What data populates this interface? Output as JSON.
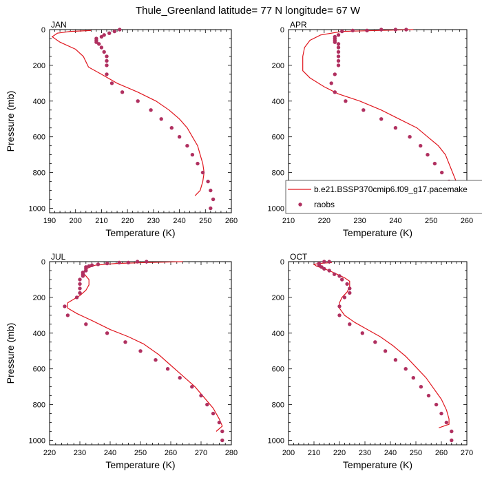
{
  "title": "Thule_Greenland  latitude= 77 N longitude= 67 W",
  "legend": {
    "model_name": "b.e21.BSSP370cmip6.f09_g17.pacemake",
    "obs_name": "raobs",
    "placement": "lower-right of APR panel"
  },
  "colors": {
    "model": "#e0161e",
    "obs": "#b03060",
    "axis": "#000000"
  },
  "chart_data": [
    {
      "panel": "JAN",
      "type": "line",
      "xlabel": "Temperature (K)",
      "ylabel": "Pressure (mb)",
      "xlim": [
        190,
        260
      ],
      "ylim": [
        1025,
        0
      ],
      "y_inverted": true,
      "xticks": [
        190,
        200,
        210,
        220,
        230,
        240,
        250,
        260
      ],
      "yticks": [
        0,
        200,
        400,
        600,
        800,
        1000
      ],
      "series": [
        {
          "name": "b.e21.BSSP370cmip6.f09_g17.pacemake",
          "style": "line",
          "points": [
            [
              206,
              5
            ],
            [
              198,
              10
            ],
            [
              193,
              20
            ],
            [
              191,
              40
            ],
            [
              194,
              70
            ],
            [
              200,
              110
            ],
            [
              203,
              150
            ],
            [
              204,
              180
            ],
            [
              205,
              210
            ],
            [
              210,
              250
            ],
            [
              216,
              300
            ],
            [
              224,
              350
            ],
            [
              231,
              400
            ],
            [
              236,
              450
            ],
            [
              240,
              500
            ],
            [
              243,
              550
            ],
            [
              245,
              600
            ],
            [
              247,
              650
            ],
            [
              248,
              700
            ],
            [
              249,
              750
            ],
            [
              249.5,
              800
            ],
            [
              249,
              850
            ],
            [
              248,
              900
            ],
            [
              246,
              930
            ]
          ]
        },
        {
          "name": "raobs",
          "style": "marker",
          "points": [
            [
              217,
              0
            ],
            [
              215,
              10
            ],
            [
              213,
              20
            ],
            [
              211,
              30
            ],
            [
              210,
              40
            ],
            [
              208,
              50
            ],
            [
              208,
              60
            ],
            [
              208,
              70
            ],
            [
              209,
              80
            ],
            [
              210,
              100
            ],
            [
              211,
              125
            ],
            [
              212,
              150
            ],
            [
              212,
              175
            ],
            [
              212,
              200
            ],
            [
              212,
              250
            ],
            [
              214,
              300
            ],
            [
              218,
              350
            ],
            [
              224,
              400
            ],
            [
              229,
              450
            ],
            [
              233,
              500
            ],
            [
              237,
              550
            ],
            [
              240,
              600
            ],
            [
              243,
              650
            ],
            [
              245,
              700
            ],
            [
              247,
              750
            ],
            [
              249,
              800
            ],
            [
              251,
              850
            ],
            [
              252,
              900
            ],
            [
              253,
              950
            ],
            [
              252,
              1000
            ]
          ]
        }
      ]
    },
    {
      "panel": "APR",
      "type": "line",
      "xlabel": "Temperature (K)",
      "ylabel": "",
      "xlim": [
        210,
        260
      ],
      "ylim": [
        1025,
        0
      ],
      "y_inverted": true,
      "xticks": [
        210,
        220,
        230,
        240,
        250,
        260
      ],
      "yticks": [
        0,
        200,
        400,
        600,
        800,
        1000
      ],
      "series": [
        {
          "name": "b.e21.BSSP370cmip6.f09_g17.pacemake",
          "style": "line",
          "points": [
            [
              245,
              0
            ],
            [
              235,
              5
            ],
            [
              225,
              10
            ],
            [
              219,
              30
            ],
            [
              216,
              60
            ],
            [
              214.5,
              100
            ],
            [
              214,
              150
            ],
            [
              214,
              200
            ],
            [
              214,
              230
            ],
            [
              216,
              270
            ],
            [
              220,
              320
            ],
            [
              224,
              360
            ],
            [
              230,
              400
            ],
            [
              236,
              450
            ],
            [
              241,
              500
            ],
            [
              246,
              550
            ],
            [
              249,
              600
            ],
            [
              252,
              650
            ],
            [
              254,
              700
            ],
            [
              255,
              750
            ],
            [
              256,
              800
            ],
            [
              257,
              850
            ],
            [
              257.5,
              900
            ],
            [
              257,
              950
            ],
            [
              256.5,
              1000
            ]
          ]
        },
        {
          "name": "raobs",
          "style": "marker",
          "points": [
            [
              243,
              0
            ],
            [
              240,
              0
            ],
            [
              236,
              0
            ],
            [
              232,
              5
            ],
            [
              228,
              5
            ],
            [
              225,
              10
            ],
            [
              224,
              30
            ],
            [
              223,
              40
            ],
            [
              223,
              50
            ],
            [
              223,
              60
            ],
            [
              223,
              70
            ],
            [
              224,
              80
            ],
            [
              224,
              100
            ],
            [
              224,
              125
            ],
            [
              224,
              150
            ],
            [
              224,
              175
            ],
            [
              224,
              200
            ],
            [
              223,
              250
            ],
            [
              222,
              300
            ],
            [
              223,
              350
            ],
            [
              226,
              400
            ],
            [
              231,
              450
            ],
            [
              236,
              500
            ],
            [
              240,
              550
            ],
            [
              244,
              600
            ],
            [
              247,
              650
            ],
            [
              249,
              700
            ],
            [
              251,
              750
            ],
            [
              253,
              800
            ],
            [
              255,
              850
            ],
            [
              256,
              900
            ],
            [
              257,
              950
            ],
            [
              257,
              1000
            ]
          ]
        }
      ]
    },
    {
      "panel": "JUL",
      "type": "line",
      "xlabel": "Temperature (K)",
      "ylabel": "Pressure (mb)",
      "xlim": [
        220,
        280
      ],
      "ylim": [
        1025,
        0
      ],
      "y_inverted": true,
      "xticks": [
        220,
        230,
        240,
        250,
        260,
        270,
        280
      ],
      "yticks": [
        0,
        200,
        400,
        600,
        800,
        1000
      ],
      "series": [
        {
          "name": "b.e21.BSSP370cmip6.f09_g17.pacemake",
          "style": "line",
          "points": [
            [
              264,
              0
            ],
            [
              252,
              5
            ],
            [
              242,
              10
            ],
            [
              235,
              20
            ],
            [
              232,
              40
            ],
            [
              231,
              60
            ],
            [
              232,
              80
            ],
            [
              233,
              100
            ],
            [
              233,
              130
            ],
            [
              232,
              160
            ],
            [
              230,
              190
            ],
            [
              228,
              210
            ],
            [
              226,
              230
            ],
            [
              226,
              260
            ],
            [
              229,
              290
            ],
            [
              234,
              330
            ],
            [
              240,
              380
            ],
            [
              246,
              420
            ],
            [
              251,
              460
            ],
            [
              256,
              520
            ],
            [
              260,
              580
            ],
            [
              264,
              640
            ],
            [
              268,
              700
            ],
            [
              271,
              760
            ],
            [
              274,
              820
            ],
            [
              276,
              880
            ],
            [
              277,
              920
            ],
            [
              275,
              950
            ]
          ]
        },
        {
          "name": "raobs",
          "style": "marker",
          "points": [
            [
              252,
              0
            ],
            [
              249,
              0
            ],
            [
              246,
              5
            ],
            [
              243,
              5
            ],
            [
              239,
              10
            ],
            [
              236,
              15
            ],
            [
              234,
              20
            ],
            [
              233,
              25
            ],
            [
              232,
              30
            ],
            [
              232,
              40
            ],
            [
              232,
              50
            ],
            [
              231,
              60
            ],
            [
              231,
              70
            ],
            [
              231,
              80
            ],
            [
              230,
              100
            ],
            [
              230,
              125
            ],
            [
              230,
              150
            ],
            [
              230,
              175
            ],
            [
              229,
              200
            ],
            [
              225,
              250
            ],
            [
              226,
              300
            ],
            [
              232,
              350
            ],
            [
              239,
              400
            ],
            [
              245,
              450
            ],
            [
              250,
              500
            ],
            [
              255,
              550
            ],
            [
              259,
              600
            ],
            [
              263,
              650
            ],
            [
              267,
              700
            ],
            [
              270,
              750
            ],
            [
              272,
              800
            ],
            [
              274,
              850
            ],
            [
              276,
              900
            ],
            [
              277,
              950
            ],
            [
              277,
              1000
            ]
          ]
        }
      ]
    },
    {
      "panel": "OCT",
      "type": "line",
      "xlabel": "Temperature (K)",
      "ylabel": "",
      "xlim": [
        200,
        270
      ],
      "ylim": [
        1025,
        0
      ],
      "y_inverted": true,
      "xticks": [
        200,
        210,
        220,
        230,
        240,
        250,
        260,
        270
      ],
      "yticks": [
        0,
        200,
        400,
        600,
        800,
        1000
      ],
      "series": [
        {
          "name": "b.e21.BSSP370cmip6.f09_g17.pacemake",
          "style": "line",
          "points": [
            [
              217,
              5
            ],
            [
              212,
              10
            ],
            [
              210,
              15
            ],
            [
              211,
              25
            ],
            [
              213,
              35
            ],
            [
              216,
              50
            ],
            [
              219,
              70
            ],
            [
              222,
              90
            ],
            [
              224,
              110
            ],
            [
              224,
              140
            ],
            [
              223,
              170
            ],
            [
              221,
              200
            ],
            [
              220,
              230
            ],
            [
              220,
              260
            ],
            [
              222,
              300
            ],
            [
              226,
              340
            ],
            [
              231,
              380
            ],
            [
              236,
              420
            ],
            [
              241,
              470
            ],
            [
              246,
              530
            ],
            [
              250,
              590
            ],
            [
              254,
              650
            ],
            [
              257,
              710
            ],
            [
              260,
              770
            ],
            [
              262,
              830
            ],
            [
              263,
              880
            ],
            [
              263,
              910
            ],
            [
              259,
              930
            ]
          ]
        },
        {
          "name": "raobs",
          "style": "marker",
          "points": [
            [
              216,
              0
            ],
            [
              214,
              0
            ],
            [
              212,
              10
            ],
            [
              212,
              20
            ],
            [
              213,
              30
            ],
            [
              214,
              40
            ],
            [
              216,
              50
            ],
            [
              218,
              70
            ],
            [
              220,
              80
            ],
            [
              221,
              100
            ],
            [
              223,
              125
            ],
            [
              224,
              150
            ],
            [
              224,
              175
            ],
            [
              222,
              200
            ],
            [
              220,
              250
            ],
            [
              220,
              300
            ],
            [
              224,
              350
            ],
            [
              229,
              400
            ],
            [
              234,
              450
            ],
            [
              238,
              500
            ],
            [
              242,
              550
            ],
            [
              246,
              600
            ],
            [
              249,
              650
            ],
            [
              252,
              700
            ],
            [
              255,
              750
            ],
            [
              258,
              800
            ],
            [
              260,
              850
            ],
            [
              262,
              900
            ],
            [
              264,
              950
            ],
            [
              264,
              1000
            ]
          ]
        }
      ]
    }
  ]
}
